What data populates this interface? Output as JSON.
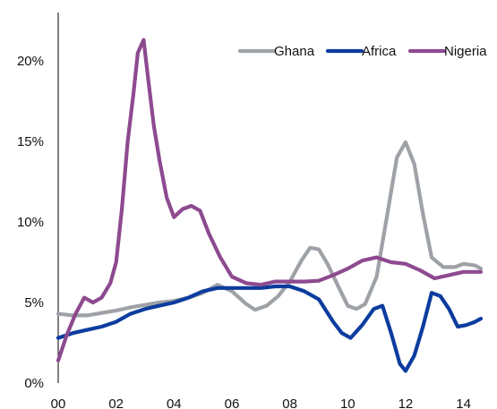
{
  "chart_data": {
    "type": "line",
    "title": "",
    "xlabel": "",
    "ylabel": "",
    "x_ticks": [
      "00",
      "02",
      "04",
      "06",
      "08",
      "10",
      "12",
      "14"
    ],
    "y_ticks": [
      "0%",
      "5%",
      "10%",
      "15%",
      "20%"
    ],
    "xlim": [
      2000,
      2014.6
    ],
    "ylim": [
      0,
      23
    ],
    "grid": false,
    "legend_position": "top-right",
    "series": [
      {
        "name": "Ghana",
        "color": "#9EA2A6",
        "points": [
          [
            2000.0,
            4.3
          ],
          [
            2000.5,
            4.2
          ],
          [
            2001.0,
            4.2
          ],
          [
            2001.5,
            4.35
          ],
          [
            2002.0,
            4.5
          ],
          [
            2002.5,
            4.7
          ],
          [
            2003.0,
            4.85
          ],
          [
            2003.5,
            5.0
          ],
          [
            2004.0,
            5.1
          ],
          [
            2004.5,
            5.3
          ],
          [
            2005.0,
            5.6
          ],
          [
            2005.5,
            6.1
          ],
          [
            2006.0,
            5.7
          ],
          [
            2006.5,
            4.9
          ],
          [
            2006.8,
            4.55
          ],
          [
            2007.2,
            4.8
          ],
          [
            2007.6,
            5.4
          ],
          [
            2008.0,
            6.3
          ],
          [
            2008.4,
            7.6
          ],
          [
            2008.7,
            8.4
          ],
          [
            2009.0,
            8.3
          ],
          [
            2009.3,
            7.4
          ],
          [
            2009.7,
            5.9
          ],
          [
            2010.0,
            4.8
          ],
          [
            2010.3,
            4.6
          ],
          [
            2010.6,
            4.9
          ],
          [
            2011.0,
            6.6
          ],
          [
            2011.4,
            10.8
          ],
          [
            2011.7,
            14.0
          ],
          [
            2012.0,
            14.95
          ],
          [
            2012.3,
            13.6
          ],
          [
            2012.6,
            10.5
          ],
          [
            2012.9,
            7.8
          ],
          [
            2013.3,
            7.2
          ],
          [
            2013.7,
            7.2
          ],
          [
            2014.0,
            7.4
          ],
          [
            2014.4,
            7.3
          ],
          [
            2014.6,
            7.1
          ]
        ]
      },
      {
        "name": "Africa",
        "color": "#0C3C9E",
        "points": [
          [
            2000.0,
            2.8
          ],
          [
            2000.5,
            3.1
          ],
          [
            2001.0,
            3.3
          ],
          [
            2001.5,
            3.5
          ],
          [
            2002.0,
            3.8
          ],
          [
            2002.5,
            4.3
          ],
          [
            2003.0,
            4.6
          ],
          [
            2003.5,
            4.8
          ],
          [
            2004.0,
            5.0
          ],
          [
            2004.5,
            5.3
          ],
          [
            2005.0,
            5.7
          ],
          [
            2005.5,
            5.9
          ],
          [
            2006.0,
            5.9
          ],
          [
            2006.5,
            5.9
          ],
          [
            2007.0,
            5.9
          ],
          [
            2007.5,
            6.0
          ],
          [
            2008.0,
            6.0
          ],
          [
            2008.5,
            5.7
          ],
          [
            2009.0,
            5.2
          ],
          [
            2009.5,
            3.8
          ],
          [
            2009.8,
            3.1
          ],
          [
            2010.1,
            2.8
          ],
          [
            2010.5,
            3.6
          ],
          [
            2010.9,
            4.6
          ],
          [
            2011.2,
            4.8
          ],
          [
            2011.5,
            3.1
          ],
          [
            2011.8,
            1.2
          ],
          [
            2012.0,
            0.75
          ],
          [
            2012.3,
            1.7
          ],
          [
            2012.6,
            3.5
          ],
          [
            2012.9,
            5.6
          ],
          [
            2013.2,
            5.4
          ],
          [
            2013.5,
            4.6
          ],
          [
            2013.8,
            3.5
          ],
          [
            2014.1,
            3.6
          ],
          [
            2014.4,
            3.8
          ],
          [
            2014.6,
            4.0
          ]
        ]
      },
      {
        "name": "Nigeria",
        "color": "#8D4A8F",
        "points": [
          [
            2000.0,
            1.4
          ],
          [
            2000.3,
            3.0
          ],
          [
            2000.6,
            4.3
          ],
          [
            2000.9,
            5.3
          ],
          [
            2001.2,
            5.0
          ],
          [
            2001.5,
            5.3
          ],
          [
            2001.8,
            6.2
          ],
          [
            2002.0,
            7.5
          ],
          [
            2002.2,
            10.8
          ],
          [
            2002.4,
            15.0
          ],
          [
            2002.6,
            18.0
          ],
          [
            2002.75,
            20.5
          ],
          [
            2002.95,
            21.3
          ],
          [
            2003.1,
            19.0
          ],
          [
            2003.3,
            16.0
          ],
          [
            2003.5,
            13.8
          ],
          [
            2003.75,
            11.5
          ],
          [
            2004.0,
            10.3
          ],
          [
            2004.3,
            10.8
          ],
          [
            2004.6,
            11.0
          ],
          [
            2004.9,
            10.7
          ],
          [
            2005.2,
            9.3
          ],
          [
            2005.6,
            7.8
          ],
          [
            2006.0,
            6.6
          ],
          [
            2006.5,
            6.2
          ],
          [
            2007.0,
            6.1
          ],
          [
            2007.5,
            6.3
          ],
          [
            2008.0,
            6.3
          ],
          [
            2008.5,
            6.3
          ],
          [
            2009.0,
            6.35
          ],
          [
            2009.5,
            6.7
          ],
          [
            2010.0,
            7.1
          ],
          [
            2010.5,
            7.6
          ],
          [
            2011.0,
            7.8
          ],
          [
            2011.5,
            7.5
          ],
          [
            2012.0,
            7.4
          ],
          [
            2012.5,
            7.0
          ],
          [
            2013.0,
            6.5
          ],
          [
            2013.5,
            6.7
          ],
          [
            2014.0,
            6.9
          ],
          [
            2014.6,
            6.9
          ]
        ]
      }
    ]
  }
}
